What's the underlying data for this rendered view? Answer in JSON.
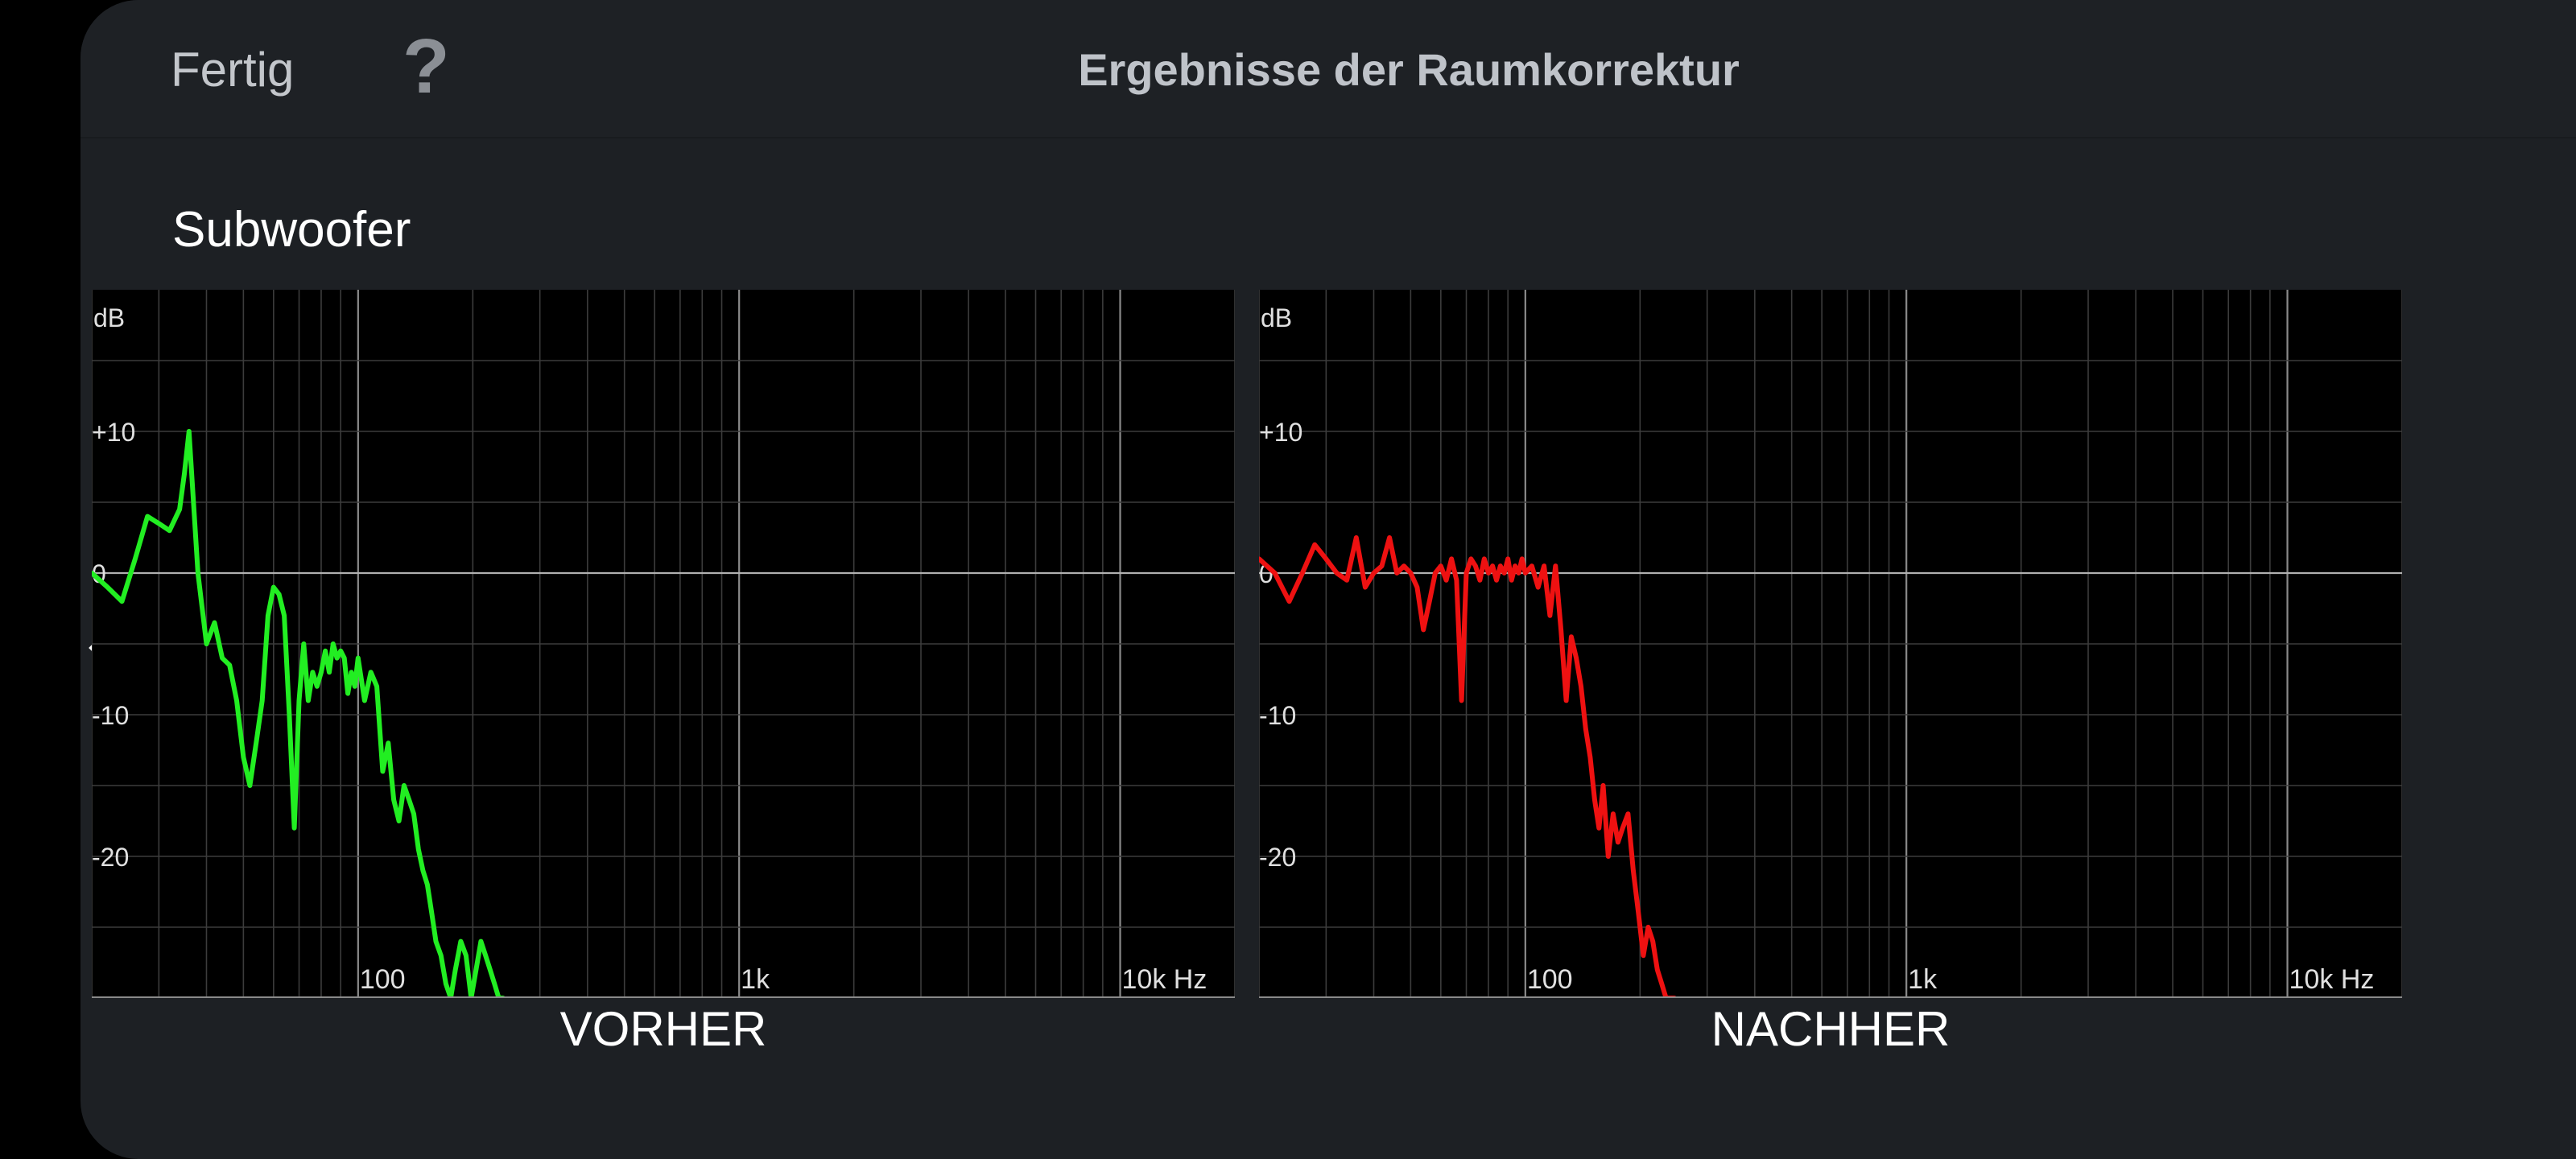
{
  "header": {
    "done_label": "Fertig",
    "help_label": "?",
    "title": "Ergebnisse der Raumkorrektur"
  },
  "section": {
    "title": "Subwoofer"
  },
  "icons": {
    "back": "chevron-left-icon",
    "help": "question-mark-icon"
  },
  "colors": {
    "background": "#1d2024",
    "chart_background": "#000000",
    "before_curve": "#22ee22",
    "after_curve": "#ee1111"
  },
  "chart_data": [
    {
      "type": "line",
      "caption": "VORHER",
      "y_unit_label": "dB",
      "x_unit_label": "Hz",
      "y_tick_labels": [
        "+10",
        "0",
        "-10",
        "-20"
      ],
      "y_ticks": [
        10,
        0,
        -10,
        -20
      ],
      "x_tick_labels": [
        "100",
        "1k",
        "10k"
      ],
      "x_ticks": [
        100,
        1000,
        10000
      ],
      "xscale": "log",
      "xlim": [
        20,
        20000
      ],
      "ylim": [
        -30,
        20
      ],
      "grid": true,
      "series": [
        {
          "color": "#22ee22",
          "x": [
            20,
            22,
            24,
            26,
            28,
            30,
            32,
            34,
            35,
            36,
            38,
            40,
            42,
            44,
            46,
            48,
            50,
            52,
            54,
            56,
            58,
            60,
            62,
            64,
            66,
            68,
            70,
            72,
            74,
            76,
            78,
            80,
            82,
            84,
            86,
            88,
            90,
            92,
            94,
            96,
            98,
            100,
            104,
            108,
            112,
            116,
            120,
            124,
            128,
            132,
            136,
            140,
            144,
            148,
            152,
            156,
            160,
            165,
            170,
            175,
            180,
            186,
            192,
            198,
            204,
            210,
            216,
            222,
            228,
            234,
            240
          ],
          "y": [
            0,
            -1,
            -2,
            1,
            4,
            3.5,
            3,
            4.5,
            7,
            10,
            0,
            -5,
            -3.5,
            -6,
            -6.5,
            -9,
            -13,
            -15,
            -12,
            -9,
            -3,
            -1,
            -1.5,
            -3,
            -10,
            -18,
            -9,
            -5,
            -9,
            -7,
            -8,
            -7,
            -5.5,
            -7,
            -5,
            -6,
            -5.5,
            -6,
            -8.5,
            -7,
            -8,
            -6,
            -9,
            -7,
            -8,
            -14,
            -12,
            -16,
            -17.5,
            -15,
            -16,
            -17,
            -19.5,
            -21,
            -22,
            -24,
            -26,
            -27,
            -29,
            -30,
            -28,
            -26,
            -27,
            -30,
            -28,
            -26,
            -27,
            -28,
            -29,
            -30,
            -30
          ],
          "y_note": "approx. dB values read from gridlines"
        }
      ]
    },
    {
      "type": "line",
      "caption": "NACHHER",
      "y_unit_label": "dB",
      "x_unit_label": "Hz",
      "y_tick_labels": [
        "+10",
        "0",
        "-10",
        "-20"
      ],
      "y_ticks": [
        10,
        0,
        -10,
        -20
      ],
      "x_tick_labels": [
        "100",
        "1k",
        "10k"
      ],
      "x_ticks": [
        100,
        1000,
        10000
      ],
      "xscale": "log",
      "xlim": [
        20,
        20000
      ],
      "ylim": [
        -30,
        20
      ],
      "grid": true,
      "series": [
        {
          "color": "#ee1111",
          "x": [
            20,
            22,
            24,
            26,
            28,
            30,
            32,
            34,
            36,
            38,
            40,
            42,
            44,
            46,
            48,
            50,
            52,
            54,
            56,
            58,
            60,
            62,
            64,
            66,
            68,
            70,
            72,
            74,
            76,
            78,
            80,
            82,
            84,
            86,
            88,
            90,
            92,
            94,
            96,
            98,
            100,
            104,
            108,
            112,
            116,
            120,
            124,
            128,
            132,
            136,
            140,
            144,
            148,
            152,
            156,
            160,
            165,
            170,
            175,
            180,
            186,
            192,
            198,
            204,
            210,
            216,
            222,
            228,
            234,
            240,
            246
          ],
          "y": [
            1,
            0,
            -2,
            0,
            2,
            1,
            0,
            -0.5,
            2.5,
            -1,
            0,
            0.5,
            2.5,
            0,
            0.5,
            0,
            -1,
            -4,
            -2,
            0,
            0.5,
            -0.5,
            1,
            -0.5,
            -9,
            0,
            1,
            0.5,
            -0.5,
            1,
            0,
            0.5,
            -0.5,
            0.5,
            0,
            1,
            -0.5,
            0.5,
            0,
            1,
            0,
            0.5,
            -1,
            0.5,
            -3,
            0.5,
            -4,
            -9,
            -4.5,
            -6,
            -8,
            -11,
            -13,
            -16,
            -18,
            -15,
            -20,
            -17,
            -19,
            -18,
            -17,
            -21,
            -24,
            -27,
            -25,
            -26,
            -28,
            -29,
            -30,
            -30,
            -30
          ],
          "y_note": "approx. dB values read from gridlines"
        }
      ]
    }
  ]
}
